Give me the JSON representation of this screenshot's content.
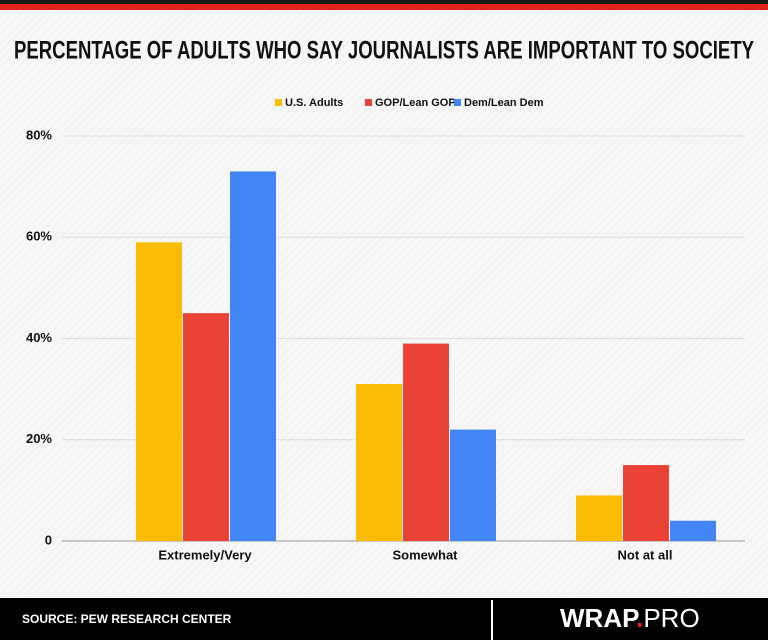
{
  "chart_data": {
    "type": "bar",
    "title": "PERCENTAGE OF ADULTS WHO SAY JOURNALISTS ARE IMPORTANT TO SOCIETY",
    "categories": [
      "Extremely/Very",
      "Somewhat",
      "Not at all"
    ],
    "series": [
      {
        "name": "U.S. Adults",
        "color": "#fbbc04",
        "values": [
          59,
          31,
          9
        ]
      },
      {
        "name": "GOP/Lean GOP",
        "color": "#ea4335",
        "values": [
          45,
          39,
          15
        ]
      },
      {
        "name": "Dem/Lean Dem",
        "color": "#4285f4",
        "values": [
          73,
          22,
          4
        ]
      }
    ],
    "ylim": [
      0,
      80
    ],
    "yticks": [
      0,
      {
        "value": 20,
        "label": "20%"
      },
      {
        "value": 40,
        "label": "40%"
      },
      {
        "value": 60,
        "label": "60%"
      },
      {
        "value": 80,
        "label": "80%"
      }
    ],
    "grid": true,
    "legend": "top"
  },
  "footer": {
    "source": "SOURCE: PEW RESEARCH CENTER",
    "logo": {
      "left": "WRAP",
      "dot": ".",
      "right": "PRO"
    }
  }
}
